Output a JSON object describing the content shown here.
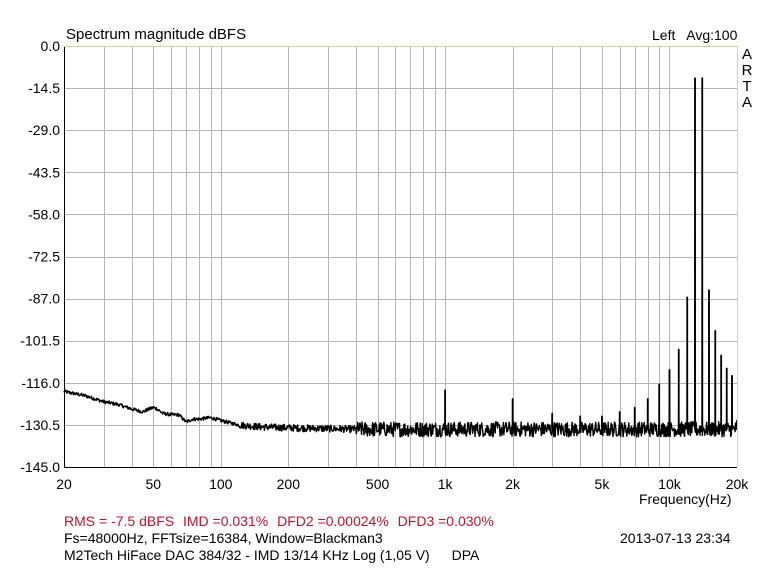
{
  "header": {
    "title": "Spectrum magnitude dBFS",
    "channel": "Left",
    "averaging": "Avg:100",
    "brand_letters": [
      "A",
      "R",
      "T",
      "A"
    ]
  },
  "footer": {
    "measurements": {
      "rms": "RMS =   -7.5 dBFS",
      "imd": "IMD =0.031%",
      "dfd2": "DFD2 =0.00024%",
      "dfd3": "DFD3 =0.030%"
    },
    "settings": "Fs=48000Hz, FFTsize=16384, Window=Blackman3",
    "timestamp": "2013-07-13  23:34",
    "device": "M2Tech HiFace DAC 384/32 - IMD 13/14 KHz Log (1,05 V)",
    "device_tag": "DPA"
  },
  "chart_data": {
    "type": "line",
    "title": "Spectrum magnitude dBFS",
    "xlabel": "Frequency(Hz)",
    "ylabel": "",
    "x_scale": "log",
    "xlim": [
      20,
      20000
    ],
    "ylim": [
      -145,
      0
    ],
    "grid": true,
    "x_ticks": [
      {
        "value": 20,
        "label": "20"
      },
      {
        "value": 50,
        "label": "50"
      },
      {
        "value": 100,
        "label": "100"
      },
      {
        "value": 200,
        "label": "200"
      },
      {
        "value": 500,
        "label": "500"
      },
      {
        "value": 1000,
        "label": "1k"
      },
      {
        "value": 2000,
        "label": "2k"
      },
      {
        "value": 5000,
        "label": "5k"
      },
      {
        "value": 10000,
        "label": "10k"
      },
      {
        "value": 20000,
        "label": "20k"
      }
    ],
    "y_ticks": [
      {
        "value": 0,
        "label": "0.0"
      },
      {
        "value": -14.5,
        "label": "-14.5"
      },
      {
        "value": -29,
        "label": "-29.0"
      },
      {
        "value": -43.5,
        "label": "-43.5"
      },
      {
        "value": -58,
        "label": "-58.0"
      },
      {
        "value": -72.5,
        "label": "-72.5"
      },
      {
        "value": -87,
        "label": "-87.0"
      },
      {
        "value": -101.5,
        "label": "-101.5"
      },
      {
        "value": -116,
        "label": "-116.0"
      },
      {
        "value": -130.5,
        "label": "-130.5"
      },
      {
        "value": -145,
        "label": "-145.0"
      }
    ],
    "series": [
      {
        "color": "#000000",
        "noise_floor": [
          [
            20,
            -119
          ],
          [
            25,
            -120.5
          ],
          [
            30,
            -122.5
          ],
          [
            35,
            -123.5
          ],
          [
            40,
            -125
          ],
          [
            45,
            -126
          ],
          [
            48,
            -125
          ],
          [
            50,
            -124.5
          ],
          [
            52,
            -125
          ],
          [
            55,
            -126.5
          ],
          [
            60,
            -127
          ],
          [
            65,
            -127
          ],
          [
            70,
            -129.5
          ],
          [
            75,
            -128.5
          ],
          [
            80,
            -128.5
          ],
          [
            90,
            -128
          ],
          [
            100,
            -129
          ],
          [
            120,
            -130.5
          ],
          [
            150,
            -131.2
          ],
          [
            200,
            -131.5
          ],
          [
            300,
            -131.8
          ],
          [
            400,
            -132
          ],
          [
            500,
            -132
          ],
          [
            700,
            -132
          ],
          [
            1000,
            -132
          ],
          [
            1500,
            -132
          ],
          [
            2000,
            -132
          ],
          [
            3000,
            -132
          ],
          [
            5000,
            -132
          ],
          [
            7000,
            -132
          ],
          [
            10000,
            -132
          ],
          [
            15000,
            -132
          ],
          [
            20000,
            -132
          ]
        ],
        "peaks": [
          [
            1000,
            -118.5
          ],
          [
            2000,
            -121.5
          ],
          [
            3000,
            -126.5
          ],
          [
            4000,
            -127.5
          ],
          [
            5000,
            -127.5
          ],
          [
            6000,
            -126
          ],
          [
            7000,
            -124.5
          ],
          [
            8000,
            -121.5
          ],
          [
            9000,
            -116.5
          ],
          [
            10000,
            -111.5
          ],
          [
            11000,
            -104.5
          ],
          [
            12000,
            -86.5
          ],
          [
            13000,
            -11
          ],
          [
            14000,
            -11
          ],
          [
            15000,
            -84
          ],
          [
            16000,
            -98
          ],
          [
            17000,
            -106.5
          ],
          [
            18000,
            -111
          ],
          [
            19000,
            -113.5
          ],
          [
            20000,
            -129
          ]
        ]
      }
    ]
  }
}
